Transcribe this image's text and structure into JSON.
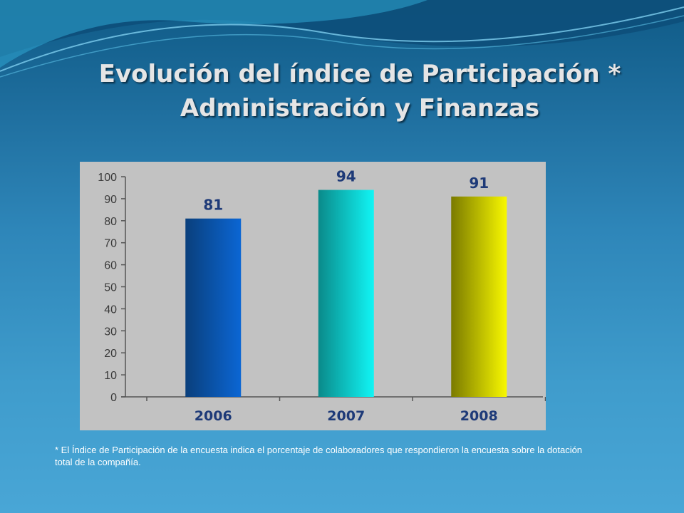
{
  "slide": {
    "title_line1": "Evolución del índice de Participación *",
    "title_line2": "Administración y Finanzas",
    "footnote": "* El Índice de Participación de la encuesta indica el porcentaje de colaboradores que respondieron la encuesta sobre la dotación total de la compañía."
  },
  "chart_data": {
    "type": "bar",
    "categories": [
      "2006",
      "2007",
      "2008"
    ],
    "values": [
      81,
      94,
      91
    ],
    "data_labels": [
      "81",
      "94",
      "91"
    ],
    "yticks": [
      0,
      10,
      20,
      30,
      40,
      50,
      60,
      70,
      80,
      90,
      100
    ],
    "ylim": [
      0,
      100
    ],
    "title": "",
    "xlabel": "",
    "ylabel": "",
    "grid": false,
    "legend": "none",
    "colors": {
      "background": "#c2c2c2",
      "bars": [
        {
          "dark": "#0a3f7c",
          "light": "#0b66d4"
        },
        {
          "dark": "#0a8a8a",
          "light": "#11f5f5"
        },
        {
          "dark": "#7a7a00",
          "light": "#f8f800"
        }
      ],
      "data_label": "#1e3a78",
      "tick_label": "#3a3a3a"
    }
  }
}
